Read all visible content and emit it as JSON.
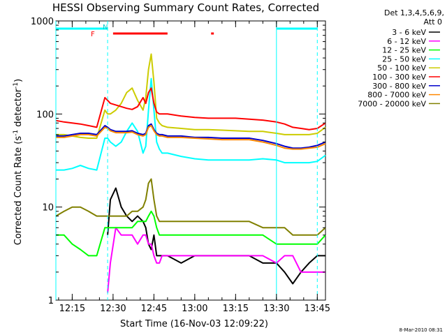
{
  "title": "HESSI Observing Summary Count Rates, Corrected",
  "footer_date": "8-Mar-2010 08:31",
  "chart_data": {
    "type": "line",
    "title": "HESSI Observing Summary Count Rates, Corrected",
    "xlabel": "Start Time (16-Nov-03 12:09:22)",
    "ylabel": "Corrected Count Rate (s",
    "ylabel_sup1": "-1",
    "ylabel_mid": " detector",
    "ylabel_sup2": "-1",
    "ylabel_end": ")",
    "yscale": "log",
    "ylim": [
      1,
      1000
    ],
    "xlim": [
      "12:09",
      "13:48"
    ],
    "x_ticks": [
      "12:15",
      "12:30",
      "12:45",
      "13:00",
      "13:15",
      "13:30",
      "13:45"
    ],
    "y_ticks": [
      "1",
      "10",
      "100",
      "1000"
    ],
    "legend": {
      "placement": "right",
      "header": [
        "Det 1,3,4,5,6,9,",
        "Att 0"
      ]
    },
    "annotations": {
      "flag_F": "F",
      "flag_N": "N"
    },
    "night_bars": [
      {
        "start": "12:09",
        "end": "12:28",
        "color": "#00ffff"
      },
      {
        "start": "13:30",
        "end": "13:45",
        "color": "#00ffff"
      }
    ],
    "flare_bars": [
      {
        "start": "12:30",
        "end": "12:50",
        "color": "#ff0000"
      },
      {
        "start": "13:06",
        "end": "13:07",
        "color": "#ff0000"
      }
    ],
    "vertical_lines": [
      {
        "t": "12:09",
        "style": "solid"
      },
      {
        "t": "12:28",
        "style": "dashed"
      },
      {
        "t": "13:30",
        "style": "solid"
      },
      {
        "t": "13:45",
        "style": "dashed"
      }
    ],
    "x_minutes": [
      9,
      12,
      15,
      18,
      21,
      24,
      27,
      28,
      29,
      31,
      33,
      35,
      37,
      39,
      41,
      42,
      43,
      44,
      45,
      46,
      47,
      48,
      50,
      55,
      60,
      65,
      70,
      75,
      80,
      85,
      90,
      93,
      96,
      99,
      102,
      105,
      108
    ],
    "series": [
      {
        "name": "3 - 6 keV",
        "color": "#000000",
        "values": [
          null,
          null,
          null,
          null,
          null,
          null,
          null,
          5,
          12,
          16,
          10,
          8,
          7,
          8,
          7,
          6,
          4,
          3.5,
          5,
          3,
          3,
          3,
          3,
          2.5,
          3,
          3,
          3,
          3,
          3,
          2.5,
          2.5,
          2,
          1.5,
          2,
          2.5,
          3,
          3
        ]
      },
      {
        "name": "6 - 12 keV",
        "color": "#ff00ff",
        "values": [
          null,
          null,
          null,
          null,
          null,
          null,
          null,
          1.2,
          2.5,
          6,
          5,
          5,
          5,
          4,
          5,
          5,
          4,
          4,
          3,
          2.5,
          2.5,
          3,
          3,
          3,
          3,
          3,
          3,
          3,
          3,
          3,
          2.5,
          3,
          3,
          2,
          2,
          2,
          2
        ]
      },
      {
        "name": "12 - 25 keV",
        "color": "#00ff00",
        "values": [
          5,
          5,
          4,
          3.5,
          3,
          3,
          6,
          6,
          6,
          6,
          6,
          6,
          6,
          7,
          7,
          7,
          8,
          9,
          8,
          6,
          5,
          5,
          5,
          5,
          5,
          5,
          5,
          5,
          5,
          5,
          4,
          4,
          4,
          4,
          4,
          4,
          5
        ]
      },
      {
        "name": "25 - 50 keV",
        "color": "#00ffff",
        "values": [
          25,
          25,
          26,
          28,
          26,
          25,
          55,
          55,
          50,
          45,
          50,
          65,
          80,
          65,
          38,
          45,
          110,
          240,
          110,
          50,
          42,
          38,
          38,
          35,
          33,
          32,
          32,
          32,
          32,
          33,
          32,
          30,
          30,
          30,
          30,
          31,
          36
        ]
      },
      {
        "name": "50 - 100 keV",
        "color": "#cccc00",
        "values": [
          60,
          60,
          58,
          56,
          55,
          55,
          110,
          100,
          100,
          110,
          130,
          170,
          190,
          140,
          110,
          150,
          300,
          440,
          220,
          90,
          80,
          75,
          72,
          70,
          68,
          68,
          67,
          66,
          65,
          65,
          62,
          60,
          60,
          60,
          60,
          62,
          72
        ]
      },
      {
        "name": "100 - 300 keV",
        "color": "#ff0000",
        "values": [
          85,
          82,
          80,
          78,
          75,
          72,
          150,
          140,
          130,
          125,
          120,
          115,
          112,
          120,
          150,
          130,
          170,
          190,
          130,
          105,
          100,
          100,
          100,
          95,
          92,
          90,
          90,
          90,
          88,
          86,
          82,
          78,
          72,
          70,
          68,
          70,
          80
        ]
      },
      {
        "name": "300 - 800 keV",
        "color": "#0000cc",
        "values": [
          58,
          58,
          60,
          62,
          62,
          60,
          75,
          72,
          68,
          65,
          65,
          65,
          66,
          62,
          60,
          62,
          75,
          78,
          68,
          62,
          60,
          60,
          58,
          58,
          56,
          56,
          55,
          55,
          55,
          52,
          48,
          45,
          43,
          43,
          44,
          46,
          50
        ]
      },
      {
        "name": "800 - 7000 keV",
        "color": "#ff8800",
        "values": [
          56,
          56,
          58,
          60,
          60,
          58,
          72,
          70,
          66,
          63,
          63,
          63,
          64,
          60,
          58,
          60,
          72,
          75,
          66,
          60,
          58,
          58,
          56,
          56,
          55,
          54,
          53,
          53,
          53,
          50,
          46,
          43,
          42,
          42,
          43,
          44,
          48
        ]
      },
      {
        "name": "7000 - 20000 keV",
        "color": "#808000",
        "values": [
          8,
          9,
          10,
          10,
          9,
          8,
          8,
          8,
          8,
          8,
          8,
          8,
          9,
          9,
          10,
          12,
          18,
          20,
          12,
          8,
          7,
          7,
          7,
          7,
          7,
          7,
          7,
          7,
          7,
          6,
          6,
          6,
          5,
          5,
          5,
          5,
          6
        ]
      }
    ]
  }
}
